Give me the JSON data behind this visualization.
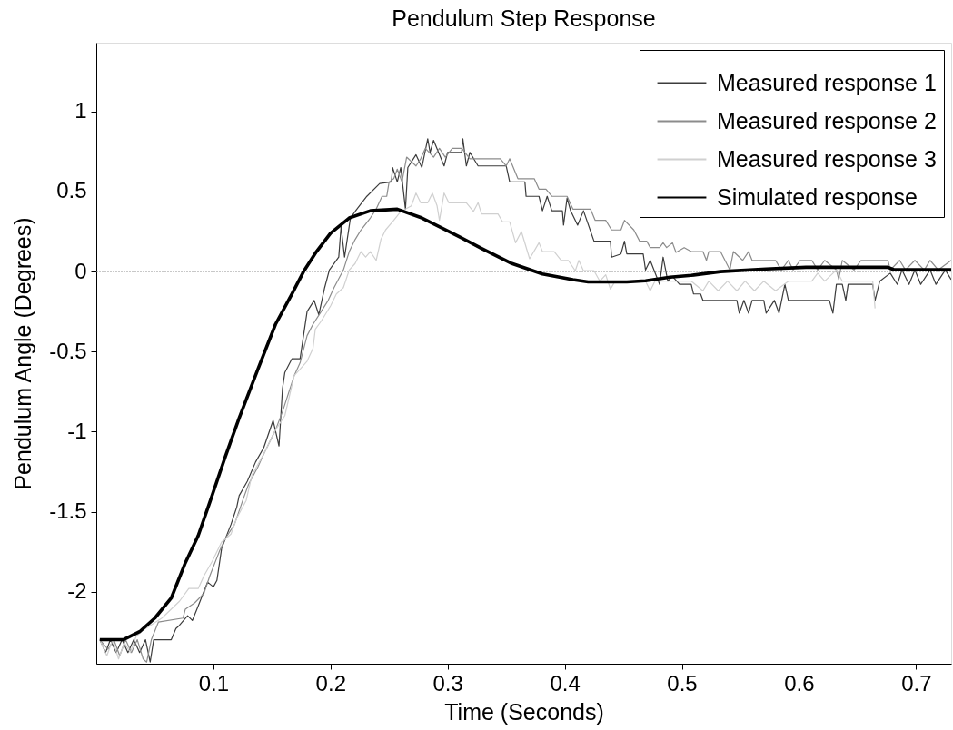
{
  "chart_data": {
    "type": "line",
    "title": "Pendulum Step Response",
    "xlabel": "Time (Seconds)",
    "ylabel": "Pendulum Angle (Degrees)",
    "xlim": [
      0,
      0.73
    ],
    "xticks": [
      0.1,
      0.2,
      0.3,
      0.4,
      0.5,
      0.6,
      0.7
    ],
    "ylim": [
      -2.45,
      1.43
    ],
    "yticks": [
      -2,
      -1.5,
      -1,
      -0.5,
      0,
      0.5,
      1
    ],
    "grid": false,
    "legend": "top right",
    "ref_lines": [
      {
        "axis": "y",
        "value": 0,
        "color": "#a0a0a0",
        "line_style": "dotted"
      }
    ],
    "series": [
      {
        "name": "Measured response 1",
        "color": "#3c3c3c",
        "x": [
          0.003,
          0.008,
          0.012,
          0.017,
          0.022,
          0.027,
          0.032,
          0.037,
          0.042,
          0.046,
          0.049,
          0.053,
          0.064,
          0.068,
          0.071,
          0.078,
          0.082,
          0.087,
          0.095,
          0.1,
          0.103,
          0.107,
          0.115,
          0.12,
          0.122,
          0.129,
          0.136,
          0.143,
          0.151,
          0.156,
          0.159,
          0.161,
          0.167,
          0.174,
          0.18,
          0.186,
          0.19,
          0.195,
          0.199,
          0.207,
          0.209,
          0.212,
          0.217,
          0.221,
          0.231,
          0.242,
          0.252,
          0.253,
          0.257,
          0.26,
          0.264,
          0.266,
          0.273,
          0.278,
          0.283,
          0.285,
          0.288,
          0.297,
          0.3,
          0.312,
          0.313,
          0.316,
          0.319,
          0.326,
          0.35,
          0.353,
          0.366,
          0.367,
          0.378,
          0.381,
          0.385,
          0.389,
          0.398,
          0.399,
          0.402,
          0.405,
          0.411,
          0.416,
          0.425,
          0.439,
          0.44,
          0.448,
          0.451,
          0.453,
          0.467,
          0.469,
          0.473,
          0.481,
          0.484,
          0.488,
          0.492,
          0.498,
          0.508,
          0.51,
          0.516,
          0.518,
          0.547,
          0.549,
          0.553,
          0.557,
          0.56,
          0.57,
          0.572,
          0.579,
          0.583,
          0.588,
          0.591,
          0.626,
          0.629,
          0.632,
          0.637,
          0.64,
          0.642,
          0.663,
          0.665,
          0.669,
          0.678,
          0.684,
          0.688,
          0.694,
          0.699,
          0.704,
          0.712,
          0.717,
          0.725,
          0.73
        ],
        "values": [
          -2.3,
          -2.38,
          -2.3,
          -2.38,
          -2.3,
          -2.38,
          -2.3,
          -2.38,
          -2.3,
          -2.44,
          -2.3,
          -2.3,
          -2.3,
          -2.23,
          -2.21,
          -2.15,
          -2.18,
          -2.09,
          -1.94,
          -1.97,
          -1.93,
          -1.73,
          -1.58,
          -1.47,
          -1.4,
          -1.31,
          -1.19,
          -1.1,
          -0.93,
          -1.09,
          -0.73,
          -0.63,
          -0.545,
          -0.545,
          -0.25,
          -0.18,
          -0.27,
          -0.1,
          0.01,
          0.09,
          0.28,
          0.09,
          0.335,
          0.375,
          0.47,
          0.55,
          0.56,
          0.65,
          0.56,
          0.65,
          0.39,
          0.65,
          0.73,
          0.65,
          0.83,
          0.745,
          0.82,
          0.66,
          0.745,
          0.745,
          0.83,
          0.66,
          0.745,
          0.66,
          0.66,
          0.56,
          0.56,
          0.47,
          0.47,
          0.38,
          0.47,
          0.38,
          0.38,
          0.29,
          0.46,
          0.38,
          0.29,
          0.38,
          0.19,
          0.19,
          0.09,
          0.11,
          0.19,
          0.11,
          0.11,
          0.01,
          0.07,
          -0.08,
          0.09,
          -0.06,
          -0.03,
          -0.08,
          -0.08,
          -0.14,
          -0.14,
          -0.18,
          -0.18,
          -0.26,
          -0.18,
          -0.26,
          -0.18,
          -0.18,
          -0.26,
          -0.18,
          -0.26,
          -0.08,
          -0.18,
          -0.18,
          -0.26,
          -0.08,
          -0.08,
          -0.18,
          -0.08,
          -0.08,
          -0.18,
          -0.06,
          -0.01,
          -0.08,
          0.01,
          -0.08,
          0.01,
          -0.08,
          0.01,
          -0.08,
          0.01,
          -0.05
        ]
      },
      {
        "name": "Measured response 2",
        "color": "#8c8c8c",
        "x": [
          0.003,
          0.01,
          0.015,
          0.02,
          0.025,
          0.03,
          0.035,
          0.04,
          0.043,
          0.047,
          0.053,
          0.074,
          0.076,
          0.084,
          0.092,
          0.097,
          0.105,
          0.11,
          0.118,
          0.126,
          0.13,
          0.138,
          0.143,
          0.153,
          0.159,
          0.169,
          0.174,
          0.18,
          0.185,
          0.192,
          0.198,
          0.203,
          0.211,
          0.216,
          0.221,
          0.226,
          0.234,
          0.239,
          0.244,
          0.248,
          0.25,
          0.254,
          0.257,
          0.261,
          0.265,
          0.273,
          0.277,
          0.281,
          0.288,
          0.293,
          0.298,
          0.304,
          0.312,
          0.319,
          0.345,
          0.35,
          0.353,
          0.36,
          0.374,
          0.378,
          0.384,
          0.389,
          0.402,
          0.407,
          0.422,
          0.426,
          0.435,
          0.44,
          0.448,
          0.451,
          0.459,
          0.464,
          0.47,
          0.473,
          0.481,
          0.484,
          0.487,
          0.492,
          0.495,
          0.502,
          0.508,
          0.518,
          0.521,
          0.523,
          0.533,
          0.541,
          0.544,
          0.552,
          0.557,
          0.56,
          0.58,
          0.585,
          0.591,
          0.595,
          0.601,
          0.611,
          0.616,
          0.622,
          0.632,
          0.634,
          0.637,
          0.647,
          0.653,
          0.676,
          0.678,
          0.686,
          0.691,
          0.699,
          0.707,
          0.712,
          0.719,
          0.73
        ],
        "values": [
          -2.3,
          -2.36,
          -2.3,
          -2.4,
          -2.3,
          -2.38,
          -2.3,
          -2.42,
          -2.44,
          -2.3,
          -2.19,
          -2.165,
          -2.11,
          -2.07,
          -2.01,
          -1.9,
          -1.75,
          -1.67,
          -1.58,
          -1.41,
          -1.33,
          -1.22,
          -1.14,
          -0.99,
          -0.875,
          -0.65,
          -0.57,
          -0.4,
          -0.33,
          -0.25,
          -0.18,
          -0.1,
          0.01,
          0.125,
          0.2,
          0.26,
          0.335,
          0.39,
          0.47,
          0.47,
          0.56,
          0.58,
          0.64,
          0.56,
          0.715,
          0.66,
          0.705,
          0.77,
          0.715,
          0.77,
          0.715,
          0.77,
          0.77,
          0.705,
          0.705,
          0.66,
          0.705,
          0.58,
          0.58,
          0.515,
          0.515,
          0.47,
          0.47,
          0.39,
          0.39,
          0.32,
          0.32,
          0.26,
          0.26,
          0.32,
          0.26,
          0.19,
          0.19,
          0.15,
          0.15,
          0.18,
          0.15,
          0.18,
          0.12,
          0.15,
          0.125,
          0.125,
          0.07,
          0.125,
          0.125,
          0.01,
          0.125,
          0.07,
          0.125,
          0.07,
          0.07,
          0.01,
          0.07,
          0.01,
          0.07,
          0.07,
          0.01,
          0.07,
          0.01,
          -0.05,
          0.07,
          0.01,
          0.07,
          0.07,
          0.01,
          0.07,
          0.01,
          0.07,
          0.01,
          0.07,
          0.01,
          0.07
        ]
      },
      {
        "name": "Measured response 3",
        "color": "#d0d0d0",
        "x": [
          0.003,
          0.009,
          0.014,
          0.019,
          0.024,
          0.029,
          0.034,
          0.04,
          0.056,
          0.071,
          0.079,
          0.087,
          0.092,
          0.099,
          0.107,
          0.115,
          0.12,
          0.128,
          0.133,
          0.143,
          0.153,
          0.161,
          0.169,
          0.174,
          0.18,
          0.185,
          0.187,
          0.192,
          0.2,
          0.205,
          0.211,
          0.216,
          0.221,
          0.226,
          0.23,
          0.234,
          0.239,
          0.243,
          0.247,
          0.254,
          0.26,
          0.269,
          0.273,
          0.277,
          0.283,
          0.287,
          0.291,
          0.293,
          0.297,
          0.301,
          0.316,
          0.322,
          0.326,
          0.329,
          0.343,
          0.347,
          0.353,
          0.358,
          0.363,
          0.37,
          0.378,
          0.381,
          0.391,
          0.397,
          0.403,
          0.409,
          0.412,
          0.416,
          0.425,
          0.43,
          0.435,
          0.439,
          0.443,
          0.456,
          0.469,
          0.473,
          0.477,
          0.508,
          0.518,
          0.523,
          0.531,
          0.539,
          0.547,
          0.554,
          0.562,
          0.57,
          0.58,
          0.591,
          0.611,
          0.616,
          0.622,
          0.632,
          0.637,
          0.663,
          0.665
        ],
        "values": [
          -2.3,
          -2.4,
          -2.3,
          -2.42,
          -2.32,
          -2.38,
          -2.28,
          -2.24,
          -2.165,
          -2.06,
          -1.98,
          -1.98,
          -1.9,
          -1.81,
          -1.69,
          -1.64,
          -1.54,
          -1.43,
          -1.27,
          -1.14,
          -0.99,
          -0.9,
          -0.65,
          -0.61,
          -0.56,
          -0.48,
          -0.36,
          -0.31,
          -0.215,
          -0.14,
          -0.1,
          0.01,
          0.05,
          0.125,
          0.09,
          0.125,
          0.07,
          0.2,
          0.26,
          0.32,
          0.375,
          0.41,
          0.49,
          0.43,
          0.43,
          0.49,
          0.41,
          0.32,
          0.49,
          0.43,
          0.43,
          0.375,
          0.43,
          0.36,
          0.36,
          0.31,
          0.31,
          0.18,
          0.25,
          0.08,
          0.18,
          0.125,
          0.125,
          0.07,
          0.07,
          0.005,
          0.07,
          0.005,
          0.005,
          -0.06,
          -0.02,
          -0.11,
          -0.06,
          -0.06,
          -0.06,
          -0.12,
          -0.06,
          -0.06,
          -0.12,
          -0.06,
          -0.12,
          -0.06,
          -0.12,
          -0.06,
          -0.12,
          -0.06,
          -0.12,
          -0.06,
          -0.06,
          -0.01,
          -0.06,
          0.01,
          -0.06,
          -0.06,
          -0.23
        ]
      },
      {
        "name": "Simulated response",
        "color": "#000000",
        "x": [
          0.003,
          0.023,
          0.037,
          0.05,
          0.064,
          0.076,
          0.087,
          0.097,
          0.11,
          0.122,
          0.138,
          0.153,
          0.167,
          0.177,
          0.188,
          0.2,
          0.216,
          0.234,
          0.257,
          0.278,
          0.304,
          0.329,
          0.355,
          0.381,
          0.407,
          0.42,
          0.453,
          0.469,
          0.49,
          0.508,
          0.533,
          0.572,
          0.606,
          0.676,
          0.681,
          0.73
        ],
        "values": [
          -2.3,
          -2.3,
          -2.25,
          -2.165,
          -2.04,
          -1.82,
          -1.65,
          -1.44,
          -1.16,
          -0.915,
          -0.61,
          -0.33,
          -0.14,
          0,
          0.125,
          0.24,
          0.335,
          0.38,
          0.39,
          0.335,
          0.24,
          0.145,
          0.05,
          -0.015,
          -0.05,
          -0.065,
          -0.065,
          -0.058,
          -0.035,
          -0.024,
          0,
          0.016,
          0.027,
          0.027,
          0.012,
          0.012
        ]
      }
    ]
  }
}
